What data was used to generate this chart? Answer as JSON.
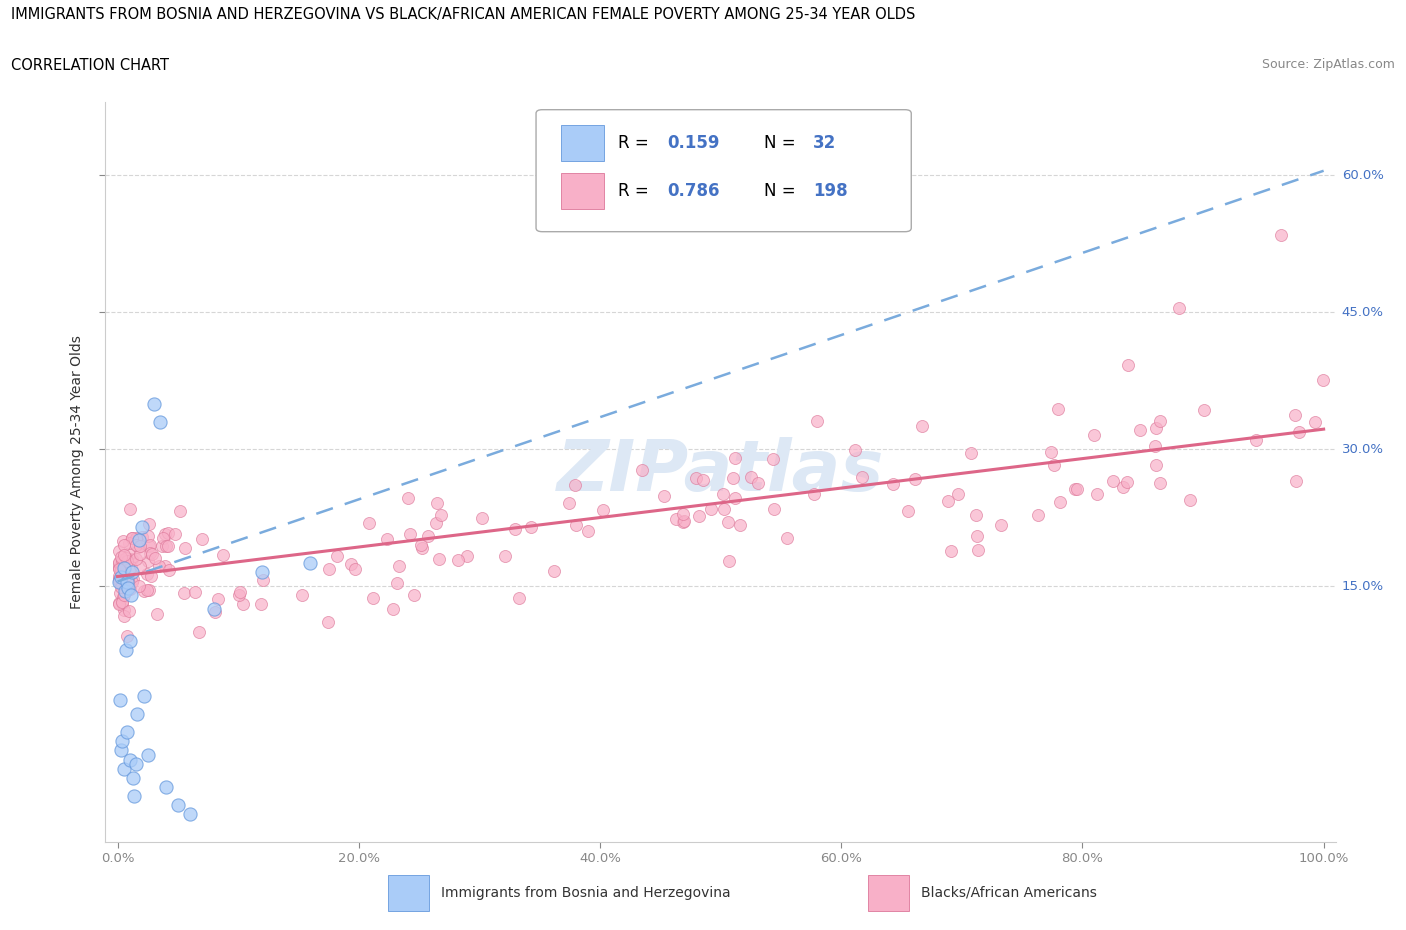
{
  "title_line1": "IMMIGRANTS FROM BOSNIA AND HERZEGOVINA VS BLACK/AFRICAN AMERICAN FEMALE POVERTY AMONG 25-34 YEAR OLDS",
  "title_line2": "CORRELATION CHART",
  "source_text": "Source: ZipAtlas.com",
  "ylabel": "Female Poverty Among 25-34 Year Olds",
  "xlim": [
    -0.01,
    1.01
  ],
  "ylim": [
    -0.13,
    0.68
  ],
  "xtick_vals": [
    0.0,
    0.2,
    0.4,
    0.6,
    0.8,
    1.0
  ],
  "xtick_labels": [
    "0.0%",
    "20.0%",
    "40.0%",
    "60.0%",
    "80.0%",
    "100.0%"
  ],
  "ytick_vals": [
    0.15,
    0.3,
    0.45,
    0.6
  ],
  "ytick_labels": [
    "15.0%",
    "30.0%",
    "45.0%",
    "60.0%"
  ],
  "watermark": "ZIPatlas",
  "legend_R1": "0.159",
  "legend_N1": "32",
  "legend_R2": "0.786",
  "legend_N2": "198",
  "series1_color": "#aaccf8",
  "series1_edge": "#6699dd",
  "series2_color": "#f8b0c8",
  "series2_edge": "#dd7799",
  "trendline1_color": "#7aabdd",
  "trendline2_color": "#dd6688",
  "label_color": "#4472c4",
  "grid_color": "#cccccc",
  "spine_color": "#cccccc",
  "watermark_color": "#dde8f5"
}
